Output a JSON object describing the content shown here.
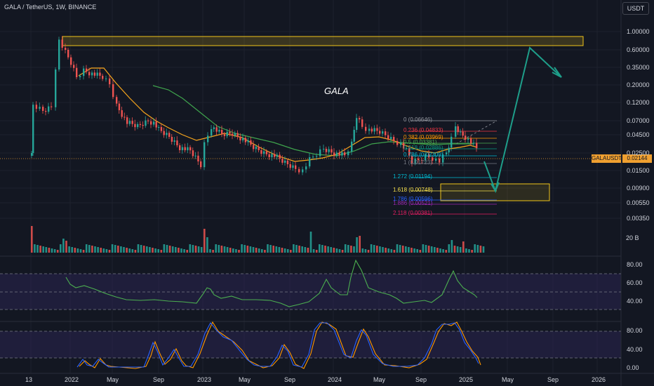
{
  "header": {
    "symbol_line": "GALA / TetherUS, 1W, BINANCE"
  },
  "currency_button": "USDT",
  "annotation": "GALA",
  "price_axis": [
    "1.00000",
    "0.60000",
    "0.35000",
    "0.20000",
    "0.12000",
    "0.07000",
    "0.04500",
    "0.02500",
    "0.01500",
    "0.00900",
    "0.00550",
    "0.00350"
  ],
  "current_price": {
    "ticker": "GALAUSDT",
    "value": "0.02144"
  },
  "volume_axis_label": "20 B",
  "rsi_axis": [
    "80.00",
    "60.00",
    "40.00"
  ],
  "stoch_axis": [
    "80.00",
    "40.00",
    "0.00"
  ],
  "time_axis": [
    "13",
    "2022",
    "May",
    "Sep",
    "2023",
    "May",
    "Sep",
    "2024",
    "May",
    "Sep",
    "2025",
    "May",
    "Sep",
    "2026"
  ],
  "fib_levels": [
    {
      "label": "0 (0.06646)",
      "color": "#9598a1"
    },
    {
      "label": "0.236 (0.04833)",
      "color": "#f23645"
    },
    {
      "label": "0.382 (0.03969)",
      "color": "#ff9800"
    },
    {
      "label": "0.5 (0.03381)",
      "color": "#4caf50"
    },
    {
      "label": "0.618 (0.02886)",
      "color": "#089981"
    },
    {
      "label": "0.786 (0.02309)",
      "color": "#00bcd4"
    },
    {
      "label": "1 (0.01723)",
      "color": "#787b86"
    },
    {
      "label": "1.272 (0.01194)",
      "color": "#00bcd4"
    },
    {
      "label": "1.618 (0.00748)",
      "color": "#f7e14b"
    },
    {
      "label": "1.786 (0.00596)",
      "color": "#2962ff"
    },
    {
      "label": "1.886 (0.00521)",
      "color": "#9c27b0"
    },
    {
      "label": "2.118 (0.00381)",
      "color": "#e91e63"
    }
  ],
  "colors": {
    "up": "#26a69a",
    "down": "#ef5350",
    "ema": "#f7a51c",
    "sma": "#3fa34d",
    "rsi": "#4caf50",
    "stoch_k": "#2962ff",
    "stoch_d": "#ff9800",
    "projection": "#1e9e8a",
    "zone": "#f0c419"
  },
  "indicator_levels": {
    "rsi_overbought": 70,
    "rsi_mid": 50,
    "rsi_oversold": 30,
    "stoch_upper": 80,
    "stoch_lower": 20
  }
}
